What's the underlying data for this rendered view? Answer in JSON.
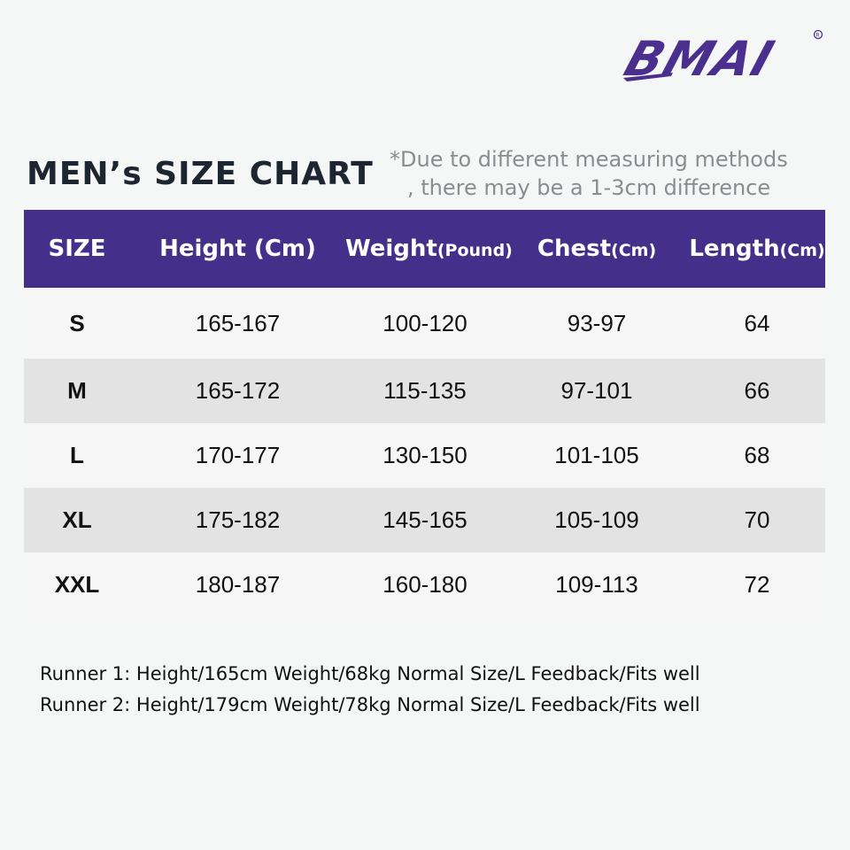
{
  "brand": {
    "logo_text": "BMAI",
    "logo_color": "#4a2f8f"
  },
  "header": {
    "title": "MEN’s SIZE CHART",
    "note_line1": "*Due to different measuring methods",
    "note_line2": ", there may be a 1-3cm difference"
  },
  "table": {
    "header_color": "#44308b",
    "columns": [
      {
        "label": "SIZE",
        "unit": ""
      },
      {
        "label": "Height (Cm)",
        "unit": ""
      },
      {
        "label": "Weight",
        "unit": "(Pound)"
      },
      {
        "label": "Chest",
        "unit": "(Cm)"
      },
      {
        "label": "Length",
        "unit": "(Cm)"
      }
    ],
    "rows": [
      {
        "size": "S",
        "height": "165-167",
        "weight": "100-120",
        "chest": "93-97",
        "length": "64"
      },
      {
        "size": "M",
        "height": "165-172",
        "weight": "115-135",
        "chest": "97-101",
        "length": "66"
      },
      {
        "size": "L",
        "height": "170-177",
        "weight": "130-150",
        "chest": "101-105",
        "length": "68"
      },
      {
        "size": "XL",
        "height": "175-182",
        "weight": "145-165",
        "chest": "105-109",
        "length": "70"
      },
      {
        "size": "XXL",
        "height": "180-187",
        "weight": "160-180",
        "chest": "109-113",
        "length": "72"
      }
    ]
  },
  "feedback": [
    "Runner 1: Height/165cm Weight/68kg Normal Size/L Feedback/Fits well",
    "Runner 2: Height/179cm Weight/78kg Normal Size/L Feedback/Fits well"
  ]
}
